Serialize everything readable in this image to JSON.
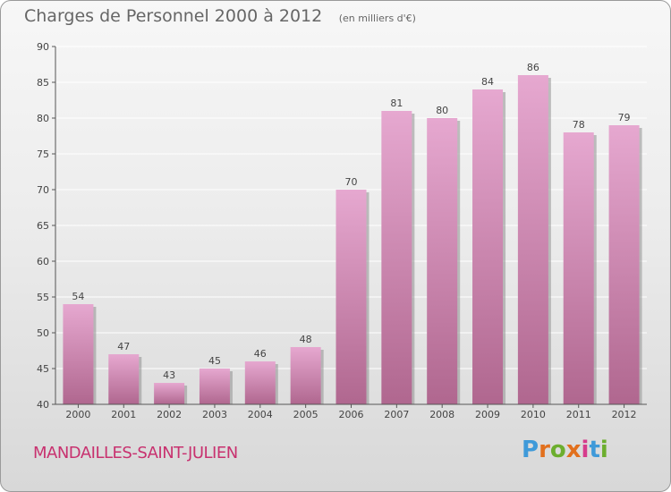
{
  "header": {
    "title": "Charges de Personnel 2000 à 2012",
    "subtitle": "(en milliers d'€)"
  },
  "footer": {
    "commune": "MANDAILLES-SAINT-JULIEN",
    "logo_text": "Proxiti",
    "logo_colors": [
      "#3f9ad9",
      "#e2701d",
      "#6cae2e",
      "#e2701d",
      "#d63c8c",
      "#3f9ad9",
      "#6cae2e"
    ]
  },
  "colors": {
    "bar_top": "#e6a8d0",
    "bar_bottom": "#b0678f",
    "bar_shadow": "#8f8f8f",
    "axis": "#555555",
    "grid": "#ffffff",
    "text": "#444444"
  },
  "chart_data": {
    "type": "bar",
    "title": "Charges de Personnel 2000 à 2012",
    "subtitle": "(en milliers d'€)",
    "xlabel": "",
    "ylabel": "",
    "categories": [
      "2000",
      "2001",
      "2002",
      "2003",
      "2004",
      "2005",
      "2006",
      "2007",
      "2008",
      "2009",
      "2010",
      "2011",
      "2012"
    ],
    "values": [
      54,
      47,
      43,
      45,
      46,
      48,
      70,
      81,
      80,
      84,
      86,
      78,
      79
    ],
    "ylim": [
      40,
      90
    ],
    "yticks": [
      40,
      45,
      50,
      55,
      60,
      65,
      70,
      75,
      80,
      85,
      90
    ],
    "grid": true,
    "data_labels": true
  }
}
